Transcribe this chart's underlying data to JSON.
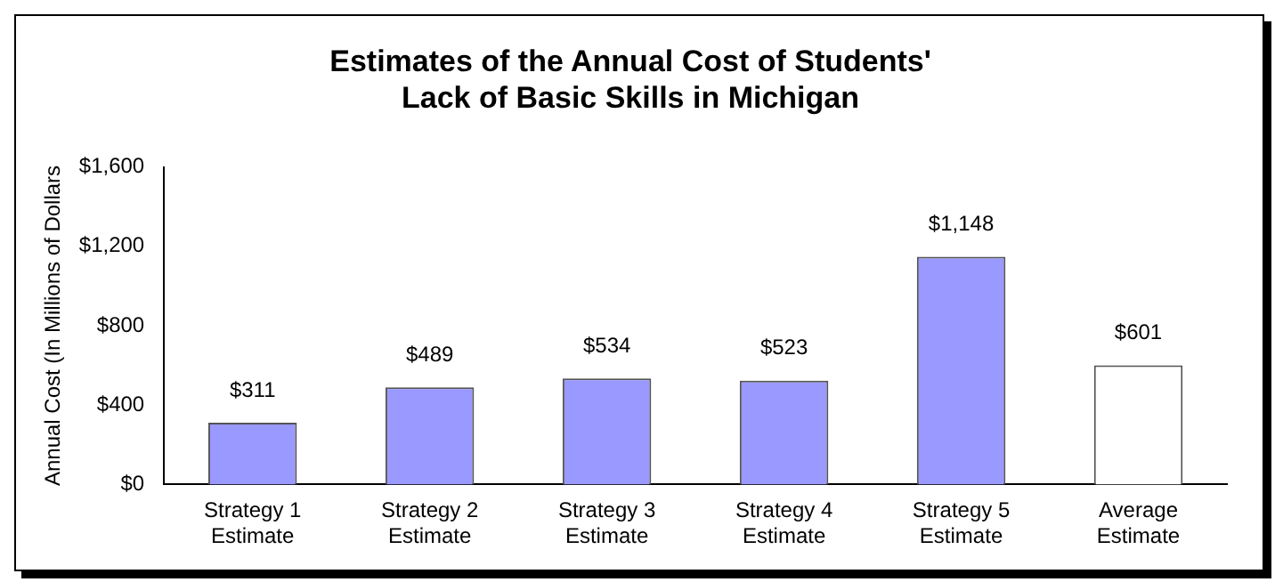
{
  "chart_data": {
    "type": "bar",
    "title": "Estimates of the Annual Cost of Students'\nLack of Basic Skills in Michigan",
    "ylabel": "Annual Cost (In Millions of Dollars",
    "categories": [
      "Strategy 1\nEstimate",
      "Strategy 2\nEstimate",
      "Strategy 3\nEstimate",
      "Strategy 4\nEstimate",
      "Strategy 5\nEstimate",
      "Average\nEstimate"
    ],
    "values": [
      311,
      489,
      534,
      523,
      1148,
      601
    ],
    "colors": [
      "#9999ff",
      "#9999ff",
      "#9999ff",
      "#9999ff",
      "#9999ff",
      "#ffffff"
    ],
    "value_labels": [
      "$311",
      "$489",
      "$534",
      "$523",
      "$1,148",
      "$601"
    ],
    "ylim": [
      0,
      1600
    ],
    "yticks": [
      {
        "value": 0,
        "label": "$0"
      },
      {
        "value": 400,
        "label": "$400"
      },
      {
        "value": 800,
        "label": "$800"
      },
      {
        "value": 1200,
        "label": "$1,200"
      },
      {
        "value": 1600,
        "label": "$1,600"
      }
    ],
    "grid": false,
    "legend": false
  }
}
